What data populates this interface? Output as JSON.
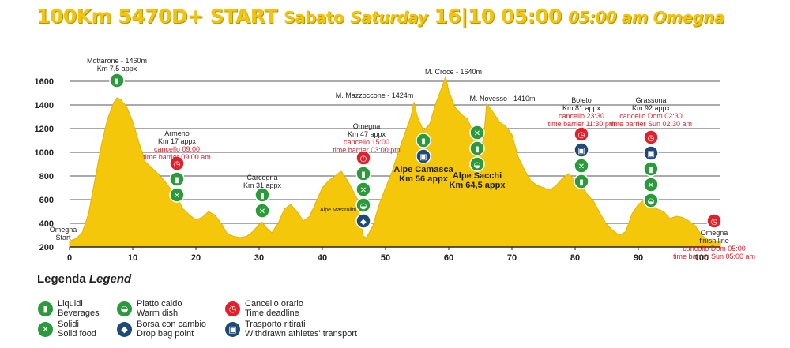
{
  "title": {
    "part1": "100Km 5470D+ START",
    "part2": "Sabato",
    "part3": "Saturday",
    "part4": "16|10 05:00",
    "part5": "05:00 am Omegna"
  },
  "colors": {
    "profile_fill": "#f5c70a",
    "title": "#f1c410",
    "green": "#2a9a3b",
    "blue": "#1e4a7a",
    "red": "#e0202a"
  },
  "chart_data": {
    "type": "area",
    "xlim": [
      0,
      103
    ],
    "ylim": [
      200,
      1700
    ],
    "xticks": [
      0,
      10,
      20,
      30,
      40,
      50,
      60,
      70,
      80,
      90,
      100
    ],
    "yticks": [
      200,
      400,
      600,
      800,
      1000,
      1200,
      1400,
      1600
    ],
    "grid": true,
    "profile": [
      [
        0,
        250
      ],
      [
        1,
        270
      ],
      [
        2,
        320
      ],
      [
        3,
        480
      ],
      [
        4,
        760
      ],
      [
        5,
        1050
      ],
      [
        6,
        1280
      ],
      [
        7,
        1420
      ],
      [
        7.5,
        1460
      ],
      [
        8,
        1450
      ],
      [
        9,
        1390
      ],
      [
        10,
        1260
      ],
      [
        11,
        1080
      ],
      [
        12,
        920
      ],
      [
        13,
        870
      ],
      [
        14,
        820
      ],
      [
        15,
        760
      ],
      [
        16,
        690
      ],
      [
        17,
        620
      ],
      [
        18,
        520
      ],
      [
        19,
        470
      ],
      [
        20,
        430
      ],
      [
        21,
        450
      ],
      [
        22,
        500
      ],
      [
        23,
        470
      ],
      [
        24,
        400
      ],
      [
        25,
        310
      ],
      [
        26,
        290
      ],
      [
        27,
        280
      ],
      [
        28,
        290
      ],
      [
        29,
        330
      ],
      [
        30,
        390
      ],
      [
        30.5,
        410
      ],
      [
        31,
        370
      ],
      [
        32,
        320
      ],
      [
        33,
        400
      ],
      [
        34,
        520
      ],
      [
        35,
        560
      ],
      [
        36,
        500
      ],
      [
        37,
        420
      ],
      [
        38,
        460
      ],
      [
        39,
        580
      ],
      [
        40,
        700
      ],
      [
        41,
        760
      ],
      [
        42,
        800
      ],
      [
        43,
        840
      ],
      [
        44,
        760
      ],
      [
        45,
        660
      ],
      [
        45.5,
        610
      ],
      [
        46,
        420
      ],
      [
        46.5,
        290
      ],
      [
        47,
        280
      ],
      [
        48,
        380
      ],
      [
        49,
        560
      ],
      [
        50,
        700
      ],
      [
        51,
        830
      ],
      [
        52,
        1000
      ],
      [
        53,
        1150
      ],
      [
        54,
        1300
      ],
      [
        54.5,
        1424
      ],
      [
        55,
        1310
      ],
      [
        56,
        1180
      ],
      [
        57,
        1240
      ],
      [
        58,
        1420
      ],
      [
        59,
        1560
      ],
      [
        59.5,
        1640
      ],
      [
        60,
        1520
      ],
      [
        61,
        1380
      ],
      [
        62,
        1320
      ],
      [
        63,
        1280
      ],
      [
        64,
        1150
      ],
      [
        65,
        1060
      ],
      [
        65.5,
        1100
      ],
      [
        66,
        1410
      ],
      [
        67,
        1340
      ],
      [
        68,
        1260
      ],
      [
        69,
        1220
      ],
      [
        70,
        1150
      ],
      [
        71,
        960
      ],
      [
        72,
        850
      ],
      [
        73,
        760
      ],
      [
        74,
        720
      ],
      [
        75,
        700
      ],
      [
        76,
        680
      ],
      [
        77,
        720
      ],
      [
        78,
        780
      ],
      [
        79,
        820
      ],
      [
        80,
        760
      ],
      [
        81,
        720
      ],
      [
        82,
        640
      ],
      [
        83,
        580
      ],
      [
        84,
        480
      ],
      [
        85,
        390
      ],
      [
        86,
        340
      ],
      [
        87,
        300
      ],
      [
        88,
        330
      ],
      [
        89,
        480
      ],
      [
        90,
        560
      ],
      [
        91,
        600
      ],
      [
        92,
        560
      ],
      [
        93,
        520
      ],
      [
        94,
        500
      ],
      [
        95,
        440
      ],
      [
        96,
        460
      ],
      [
        97,
        450
      ],
      [
        98,
        420
      ],
      [
        99,
        380
      ],
      [
        100,
        300
      ],
      [
        101,
        260
      ],
      [
        102,
        250
      ],
      [
        103,
        250
      ]
    ],
    "labels": [
      {
        "x": 0,
        "y": 250,
        "lines": [
          "Omegna",
          "Start"
        ],
        "color": "dark"
      },
      {
        "x": 7.5,
        "y": 1460,
        "lines": [
          "Mottarone - 1460m",
          "Km 7,5 appx"
        ],
        "color": "dark"
      },
      {
        "x": 17,
        "y": 620,
        "lines": [
          "Armeno",
          "Km 17 appx"
        ],
        "color": "dark",
        "red_lines": [
          "cancello 09:00",
          "time barrier 09:00 am"
        ]
      },
      {
        "x": 30.5,
        "y": 410,
        "lines": [
          "Carcegna",
          "Km 31 appx"
        ],
        "color": "dark"
      },
      {
        "x": 45,
        "y": 660,
        "lines": [
          "Alpe Mastrolini"
        ],
        "color": "dark",
        "small": true
      },
      {
        "x": 47,
        "y": 280,
        "lines": [
          "Omegna",
          "Km 47 appx"
        ],
        "color": "dark",
        "red_lines": [
          "cancello 15:00",
          "time barrier 03:00 pm"
        ]
      },
      {
        "x": 54.5,
        "y": 1424,
        "lines": [
          "M. Mazzoccone - 1424m"
        ],
        "color": "dark"
      },
      {
        "x": 56,
        "y": 1180,
        "lines": [
          "Alpe Camasca",
          "Km 56 appx"
        ],
        "color": "dark",
        "big": true
      },
      {
        "x": 59.5,
        "y": 1640,
        "lines": [
          "M. Croce - 1640m"
        ],
        "color": "dark"
      },
      {
        "x": 64.5,
        "y": 1060,
        "lines": [
          "Alpe Sacchi",
          "Km 64,5 appx"
        ],
        "color": "dark",
        "big": true
      },
      {
        "x": 66,
        "y": 1410,
        "lines": [
          "M. Novesso - 1410m"
        ],
        "color": "dark"
      },
      {
        "x": 81,
        "y": 720,
        "lines": [
          "Boleto",
          "Km 81 appx"
        ],
        "color": "dark",
        "red_lines": [
          "cancello 23:30",
          "time barrier 11:30 pm"
        ]
      },
      {
        "x": 92,
        "y": 560,
        "lines": [
          "Grassona",
          "Km 92 appx"
        ],
        "color": "dark",
        "red_lines": [
          "cancello Dom 02:30",
          "time barrier Sun 02:30 am"
        ]
      },
      {
        "x": 102,
        "y": 250,
        "lines": [
          "Omegna",
          "finish line"
        ],
        "color": "dark",
        "red_lines": [
          "cancello Dom 05:00",
          "time barrier Sun 05:00 am"
        ]
      }
    ]
  },
  "stations": [
    {
      "km": 7.5,
      "icons": [
        "beverages"
      ]
    },
    {
      "km": 17,
      "icons": [
        "time-deadline",
        "beverages",
        "solid-food"
      ]
    },
    {
      "km": 30.5,
      "icons": [
        "beverages",
        "solid-food"
      ]
    },
    {
      "km": 46.5,
      "icons": [
        "time-deadline",
        "beverages",
        "solid-food",
        "warm-dish",
        "drop-bag"
      ]
    },
    {
      "km": 56,
      "icons": [
        "beverages",
        "transport"
      ]
    },
    {
      "km": 64.5,
      "icons": [
        "solid-food",
        "beverages",
        "warm-dish"
      ]
    },
    {
      "km": 81,
      "icons": [
        "time-deadline",
        "transport",
        "solid-food",
        "beverages"
      ]
    },
    {
      "km": 92,
      "icons": [
        "time-deadline",
        "transport",
        "beverages",
        "solid-food",
        "warm-dish"
      ]
    },
    {
      "km": 102,
      "icons": [
        "time-deadline"
      ]
    }
  ],
  "legend": {
    "title_it": "Legenda",
    "title_en": "Legend",
    "items": [
      {
        "icon": "beverages",
        "line1": "Liquidi",
        "line2": "Beverages"
      },
      {
        "icon": "solid-food",
        "line1": "Solidi",
        "line2": "Solid food"
      },
      {
        "icon": "warm-dish",
        "line1": "Piatto caldo",
        "line2": "Warm dish"
      },
      {
        "icon": "drop-bag",
        "line1": "Borsa con cambio",
        "line2": "Drop bag point"
      },
      {
        "icon": "time-deadline",
        "line1": "Cancello orario",
        "line2": "Time deadline"
      },
      {
        "icon": "transport",
        "line1": "Trasporto ritirati",
        "line2": "Withdrawn athletes' transport"
      }
    ]
  },
  "icon_glyphs": {
    "beverages": "▮",
    "solid-food": "✕",
    "warm-dish": "◒",
    "drop-bag": "◆",
    "time-deadline": "◷",
    "transport": "▣"
  }
}
